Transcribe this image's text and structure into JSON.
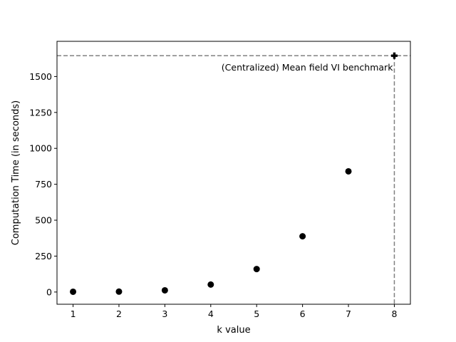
{
  "chart_data": {
    "type": "scatter",
    "title": "",
    "xlabel": "k value",
    "ylabel": "Computation Time (in seconds)",
    "xlim": [
      0.65,
      8.35
    ],
    "ylim": [
      -85,
      1745
    ],
    "xticks": [
      1,
      2,
      3,
      4,
      5,
      6,
      7,
      8
    ],
    "yticks": [
      0,
      250,
      500,
      750,
      1000,
      1250,
      1500
    ],
    "grid": false,
    "legend": "none",
    "series": [
      {
        "marker": "circle",
        "color": "#000000",
        "points": [
          {
            "x": 1,
            "y": 2
          },
          {
            "x": 2,
            "y": 3
          },
          {
            "x": 3,
            "y": 12
          },
          {
            "x": 4,
            "y": 52
          },
          {
            "x": 5,
            "y": 160
          },
          {
            "x": 6,
            "y": 388
          },
          {
            "x": 7,
            "y": 840
          }
        ]
      }
    ],
    "benchmark": {
      "label": "(Centralized) Mean field VI benchmark",
      "x": 8,
      "y": 1645,
      "marker": "plus-filled",
      "line_color": "#808080",
      "line_style": "dashed"
    }
  }
}
